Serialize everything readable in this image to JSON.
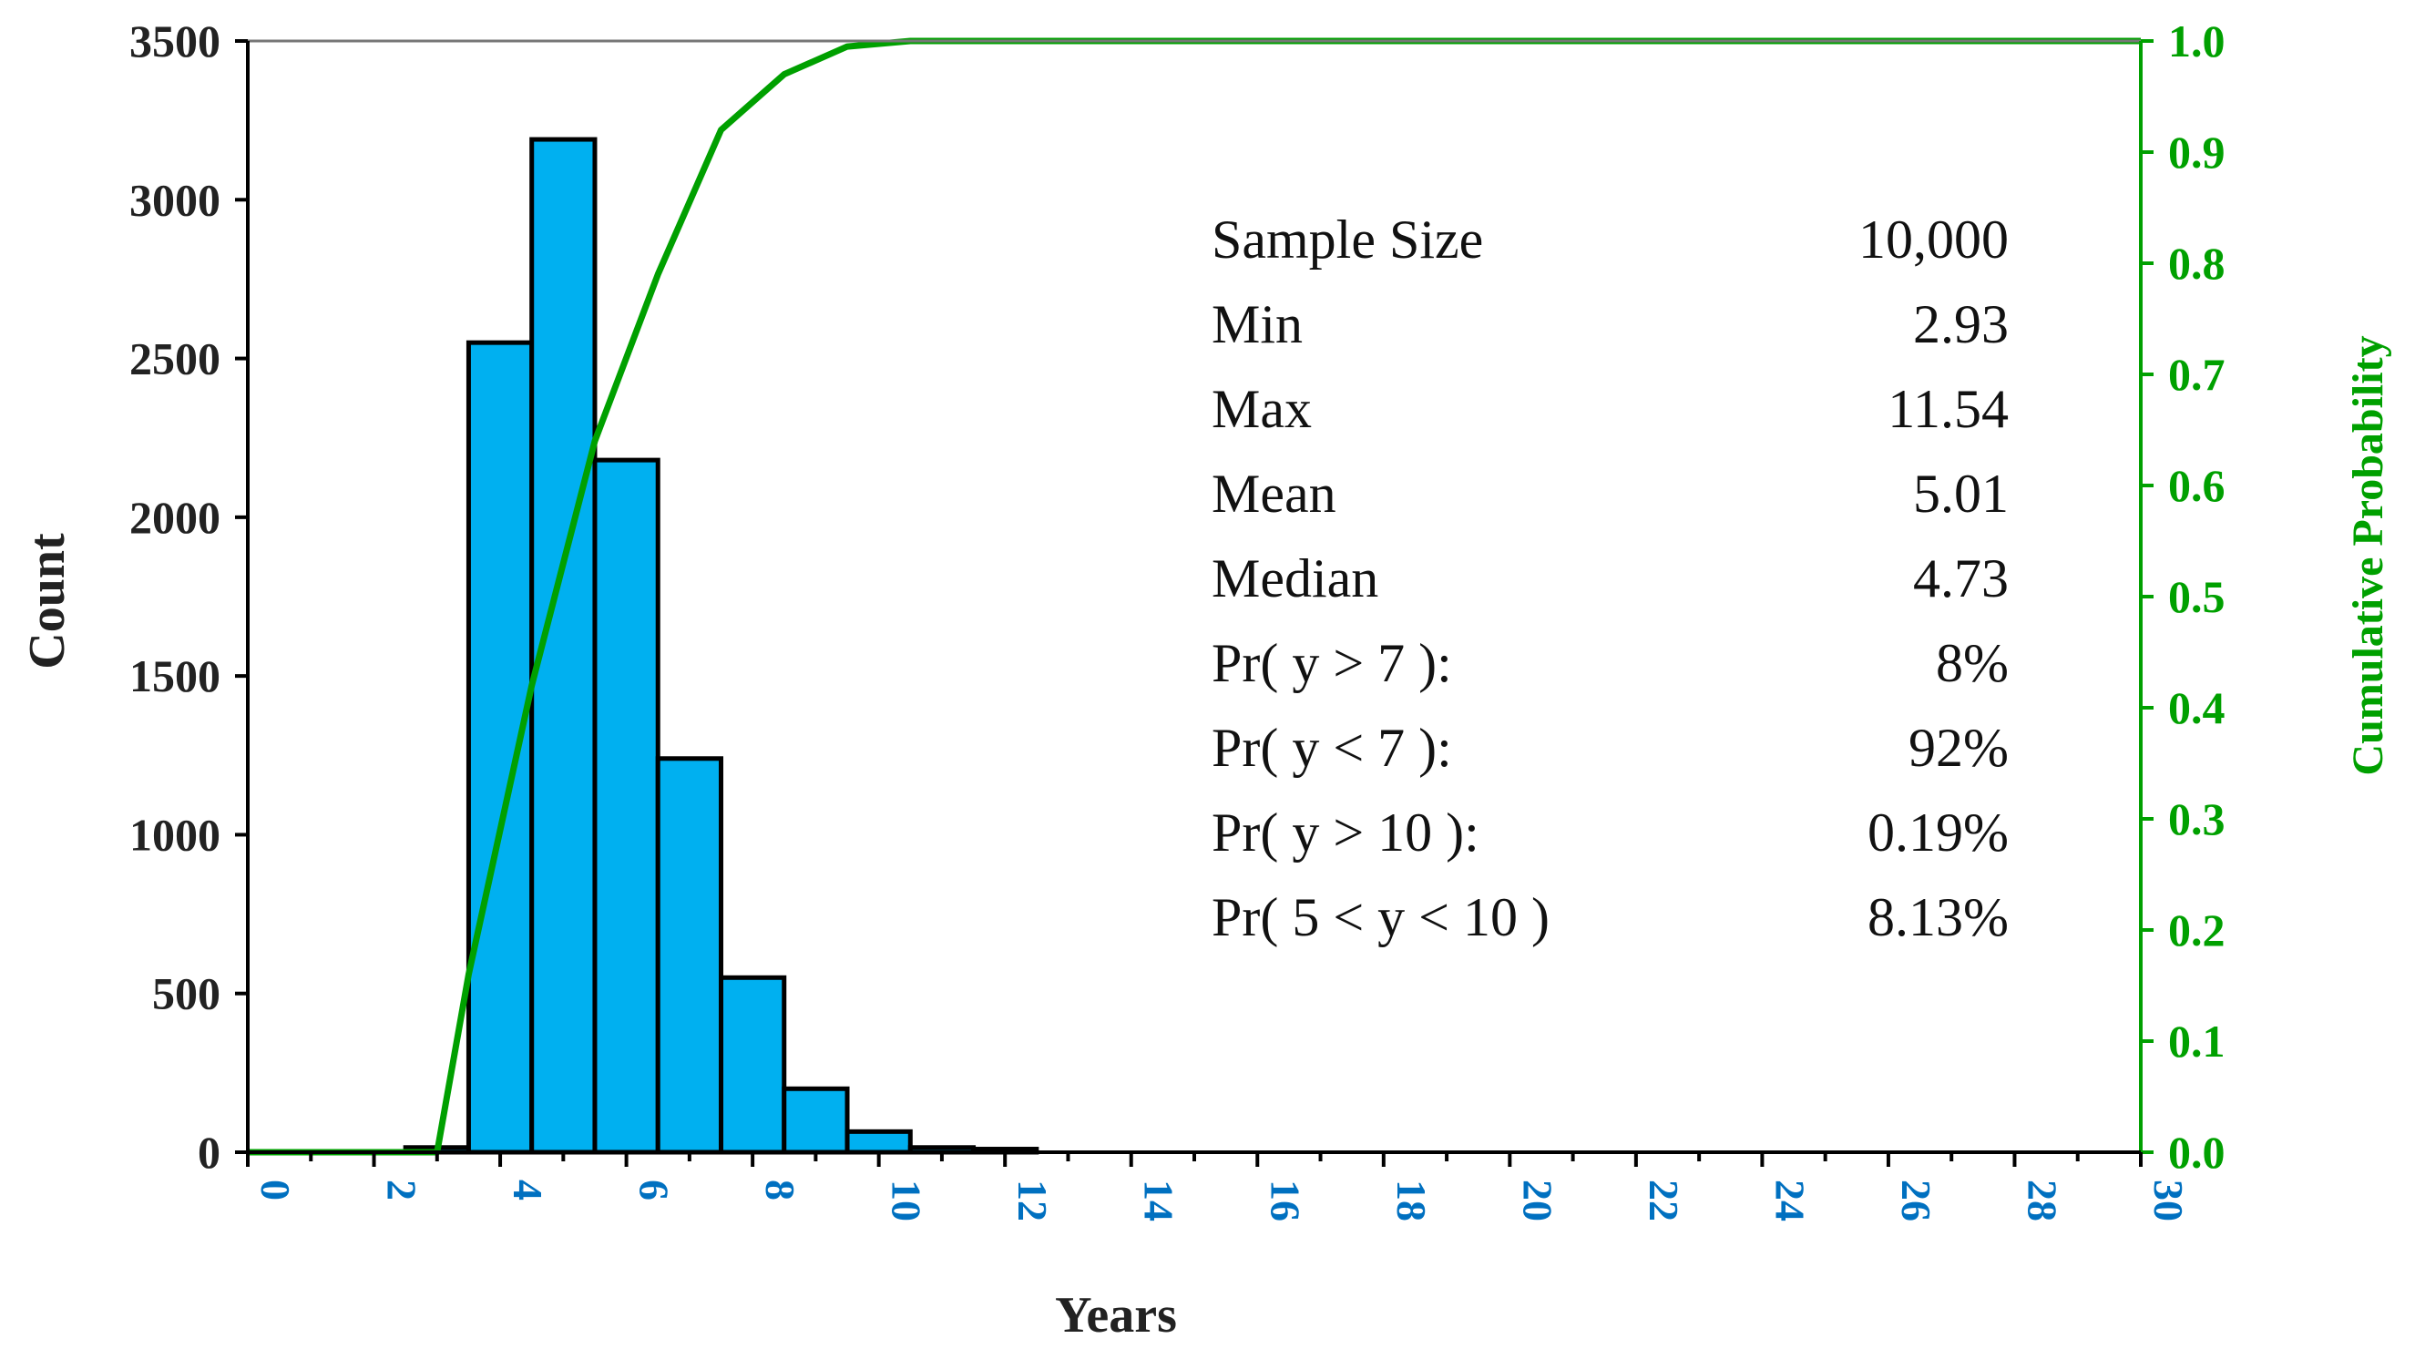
{
  "chart_data": {
    "type": "bar",
    "xlabel": "Years",
    "ylabel": "Count",
    "y2label": "Cumulative Probability",
    "xlim": [
      0,
      30
    ],
    "ylim": [
      0,
      3500
    ],
    "y2lim": [
      0,
      1.0
    ],
    "x_ticks": [
      "0",
      "2",
      "4",
      "6",
      "8",
      "10",
      "12",
      "14",
      "16",
      "18",
      "20",
      "22",
      "24",
      "26",
      "28",
      "30"
    ],
    "y_ticks": [
      "0",
      "500",
      "1000",
      "1500",
      "2000",
      "2500",
      "3000",
      "3500"
    ],
    "y2_ticks": [
      "0.0",
      "0.1",
      "0.2",
      "0.3",
      "0.4",
      "0.5",
      "0.6",
      "0.7",
      "0.8",
      "0.9",
      "1.0"
    ],
    "grid": false,
    "colors": {
      "bars": "#00b0f0",
      "cumulative": "#00a000",
      "x_tick_labels": "#0070c0",
      "y2_axis": "#00a000"
    },
    "series": [
      {
        "type": "bar",
        "bins": [
          [
            2.5,
            3.5
          ],
          [
            3.5,
            4.5
          ],
          [
            4.5,
            5.5
          ],
          [
            5.5,
            6.5
          ],
          [
            6.5,
            7.5
          ],
          [
            7.5,
            8.5
          ],
          [
            8.5,
            9.5
          ],
          [
            9.5,
            10.5
          ],
          [
            10.5,
            11.5
          ],
          [
            11.5,
            12.5
          ]
        ],
        "values": [
          15,
          2550,
          3190,
          2180,
          1240,
          550,
          200,
          65,
          15,
          10
        ]
      },
      {
        "type": "line",
        "x": [
          0,
          3.0,
          3.5,
          4.5,
          5.5,
          6.5,
          7.5,
          8.5,
          9.5,
          10.5,
          11.5,
          12.5,
          30
        ],
        "values": [
          0.0,
          0.0,
          0.16,
          0.42,
          0.64,
          0.79,
          0.92,
          0.97,
          0.995,
          1.0,
          1.0,
          1.0,
          1.0
        ]
      }
    ],
    "stats": [
      {
        "label": "Sample Size",
        "value": "10,000"
      },
      {
        "label": "Min",
        "value": "2.93"
      },
      {
        "label": "Max",
        "value": "11.54"
      },
      {
        "label": "Mean",
        "value": "5.01"
      },
      {
        "label": "Median",
        "value": "4.73"
      },
      {
        "label": "Pr( y > 7 ):",
        "value": "8%"
      },
      {
        "label": "Pr( y < 7 ):",
        "value": "92%"
      },
      {
        "label": "Pr( y > 10 ):",
        "value": "0.19%"
      },
      {
        "label": "Pr( 5 < y < 10 )",
        "value": "8.13%"
      }
    ]
  }
}
